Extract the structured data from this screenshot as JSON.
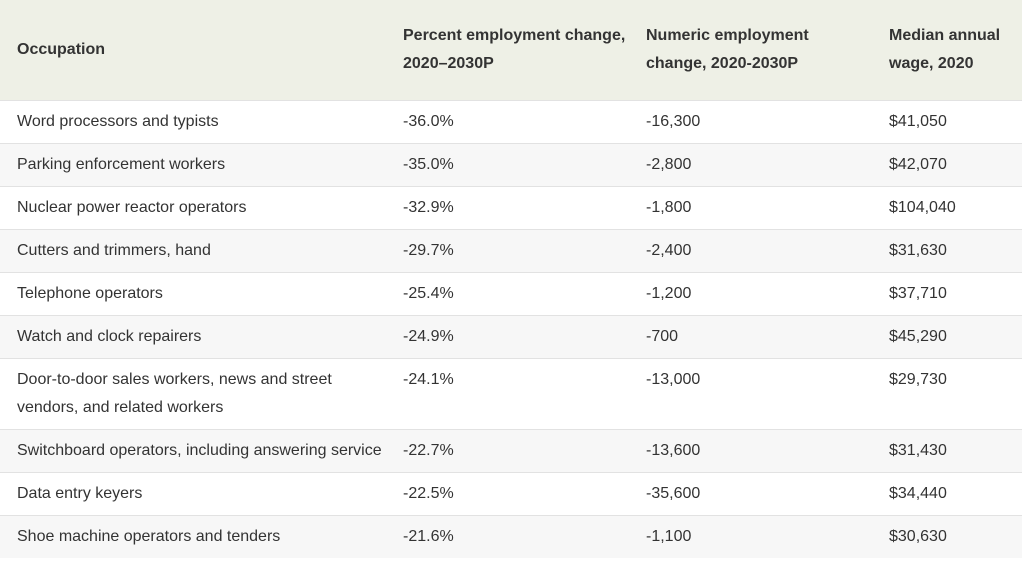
{
  "table": {
    "header": [
      "Occupation",
      "Percent employment change, 2020–2030P",
      "Numeric employment change, 2020-2030P",
      "Median annual wage, 2020"
    ],
    "rows": [
      [
        "Word processors and typists",
        "-36.0%",
        "-16,300",
        "$41,050"
      ],
      [
        "Parking enforcement workers",
        "-35.0%",
        "-2,800",
        "$42,070"
      ],
      [
        "Nuclear power reactor operators",
        "-32.9%",
        "-1,800",
        "$104,040"
      ],
      [
        "Cutters and trimmers, hand",
        "-29.7%",
        "-2,400",
        "$31,630"
      ],
      [
        "Telephone operators",
        "-25.4%",
        "-1,200",
        "$37,710"
      ],
      [
        "Watch and clock repairers",
        "-24.9%",
        "-700",
        "$45,290"
      ],
      [
        "Door-to-door sales workers, news and street vendors, and related workers",
        "-24.1%",
        "-13,000",
        "$29,730"
      ],
      [
        "Switchboard operators, including answering service",
        "-22.7%",
        "-13,600",
        "$31,430"
      ],
      [
        "Data entry keyers",
        "-22.5%",
        "-35,600",
        "$34,440"
      ],
      [
        "Shoe machine operators and tenders",
        "-21.6%",
        "-1,100",
        "$30,630"
      ]
    ]
  }
}
